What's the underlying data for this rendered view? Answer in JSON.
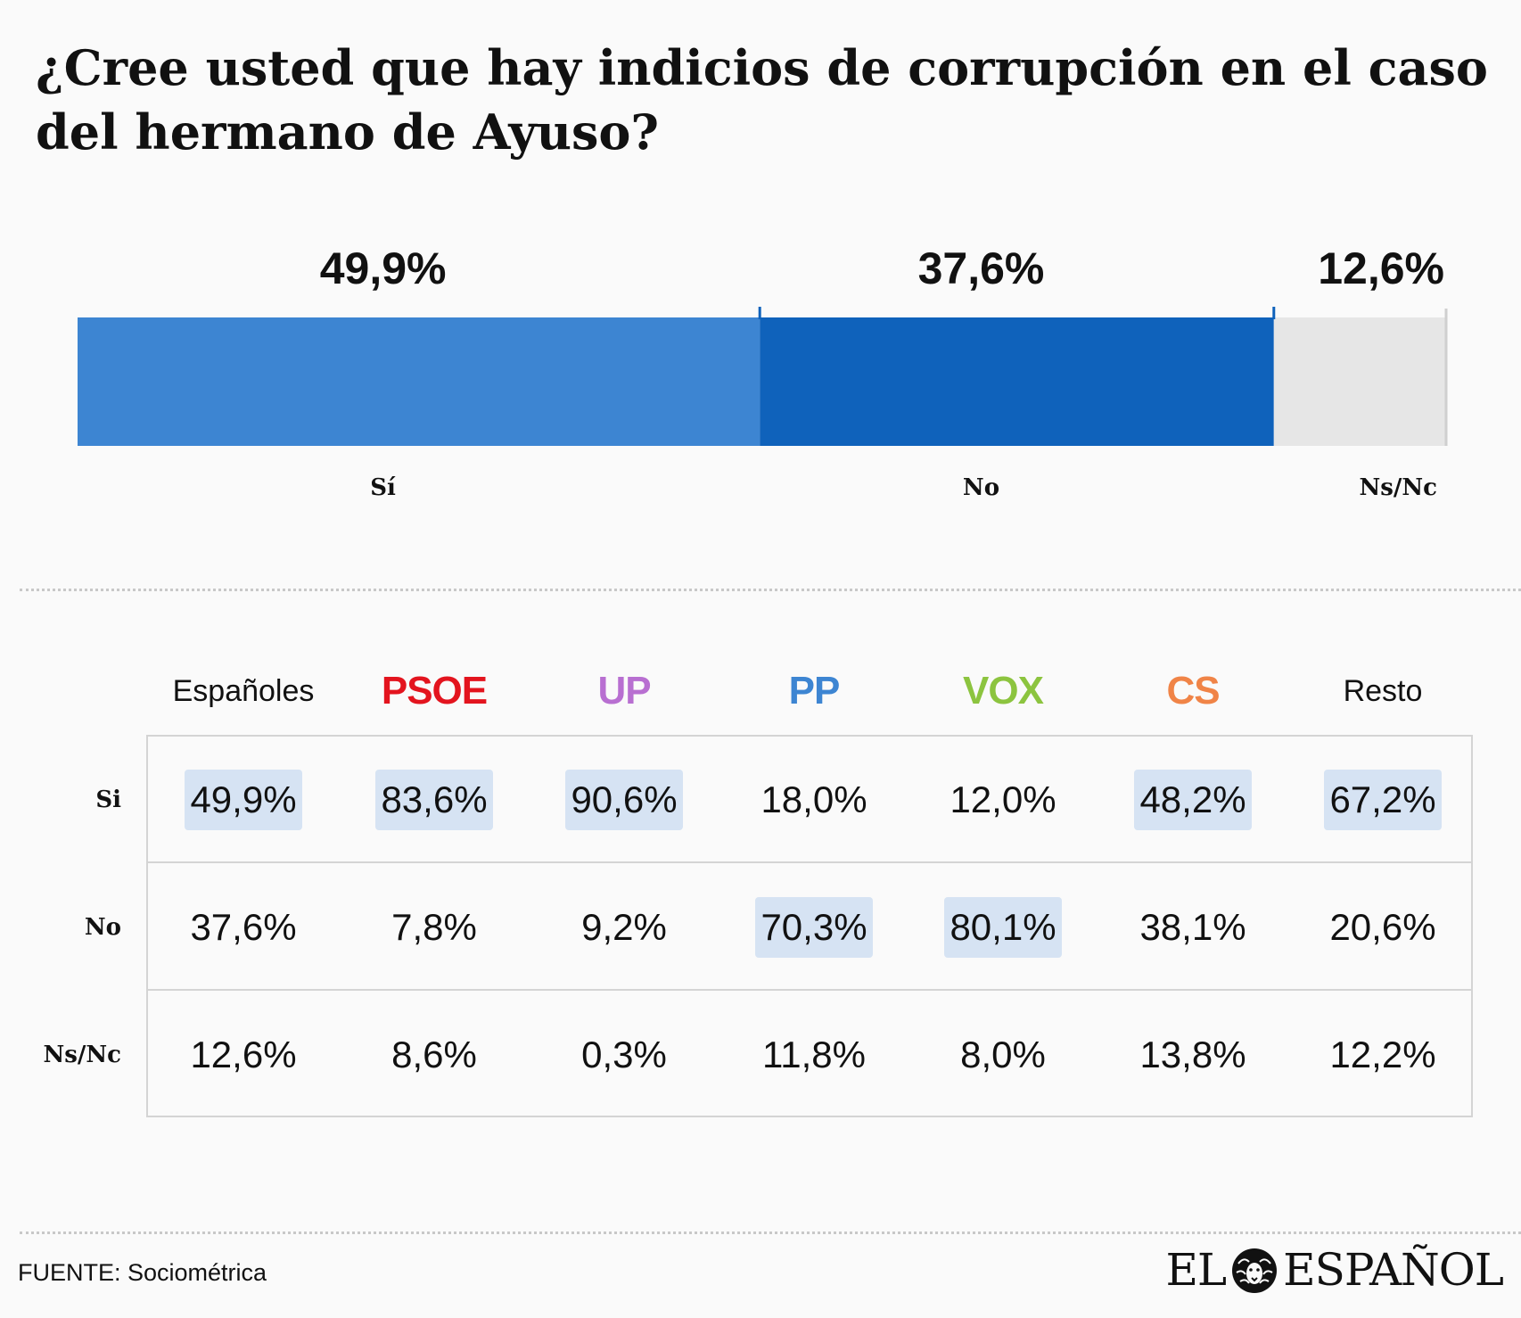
{
  "title": "¿Cree usted que hay indicios de corrupción en el caso del hermano de Ayuso?",
  "chart_data": [
    {
      "type": "bar",
      "orientation": "horizontal-stacked",
      "categories": [
        "Sí",
        "No",
        "Ns/Nc"
      ],
      "values": [
        49.9,
        37.6,
        12.6
      ],
      "value_labels": [
        "49,9%",
        "37,6%",
        "12,6%"
      ],
      "colors": [
        "#3d85d2",
        "#0f62bb",
        "#e6e6e6"
      ],
      "unit": "%"
    },
    {
      "type": "table",
      "columns": [
        "Españoles",
        "PSOE",
        "UP",
        "PP",
        "VOX",
        "CS",
        "Resto"
      ],
      "column_colors": [
        "#111111",
        "#e3141e",
        "#b86fd1",
        "#3d85d2",
        "#8cc43f",
        "#f08447",
        "#111111"
      ],
      "rows": [
        {
          "label": "Si",
          "cells": [
            {
              "text": "49,9%",
              "value": 49.9,
              "highlight": true
            },
            {
              "text": "83,6%",
              "value": 83.6,
              "highlight": true
            },
            {
              "text": "90,6%",
              "value": 90.6,
              "highlight": true
            },
            {
              "text": "18,0%",
              "value": 18.0,
              "highlight": false
            },
            {
              "text": "12,0%",
              "value": 12.0,
              "highlight": false
            },
            {
              "text": "48,2%",
              "value": 48.2,
              "highlight": true
            },
            {
              "text": "67,2%",
              "value": 67.2,
              "highlight": true
            }
          ]
        },
        {
          "label": "No",
          "cells": [
            {
              "text": "37,6%",
              "value": 37.6,
              "highlight": false
            },
            {
              "text": "7,8%",
              "value": 7.8,
              "highlight": false
            },
            {
              "text": "9,2%",
              "value": 9.2,
              "highlight": false
            },
            {
              "text": "70,3%",
              "value": 70.3,
              "highlight": true
            },
            {
              "text": "80,1%",
              "value": 80.1,
              "highlight": true
            },
            {
              "text": "38,1%",
              "value": 38.1,
              "highlight": false
            },
            {
              "text": "20,6%",
              "value": 20.6,
              "highlight": false
            }
          ]
        },
        {
          "label": "Ns/Nc",
          "cells": [
            {
              "text": "12,6%",
              "value": 12.6,
              "highlight": false
            },
            {
              "text": "8,6%",
              "value": 8.6,
              "highlight": false
            },
            {
              "text": "0,3%",
              "value": 0.3,
              "highlight": false
            },
            {
              "text": "11,8%",
              "value": 11.8,
              "highlight": false
            },
            {
              "text": "8,0%",
              "value": 8.0,
              "highlight": false
            },
            {
              "text": "13,8%",
              "value": 13.8,
              "highlight": false
            },
            {
              "text": "12,2%",
              "value": 12.2,
              "highlight": false
            }
          ]
        }
      ],
      "highlight_color": "#d6e3f3"
    }
  ],
  "source": "FUENTE: Sociométrica",
  "logo": {
    "left": "EL",
    "right": "ESPAÑOL",
    "icon": "lion-head-icon"
  }
}
